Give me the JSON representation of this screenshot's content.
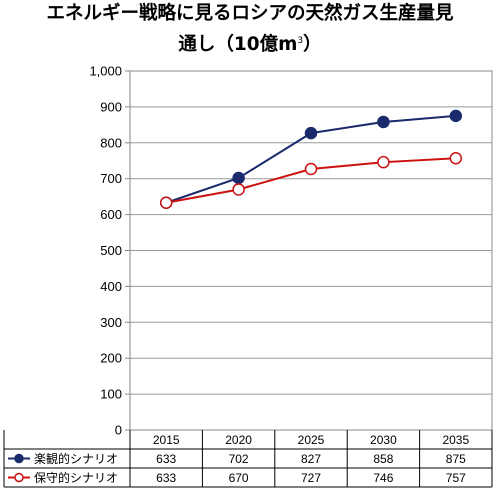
{
  "title": {
    "line1": "エネルギー戦略に見るロシアの天然ガス生産量見",
    "line2_main": "通し（10億m",
    "line2_sup": "3",
    "line2_end": "）"
  },
  "chart_data": {
    "type": "line",
    "categories": [
      "2015",
      "2020",
      "2025",
      "2030",
      "2035"
    ],
    "ylim": [
      0,
      1000
    ],
    "yticks": [
      0,
      100,
      200,
      300,
      400,
      500,
      600,
      700,
      800,
      900,
      1000
    ],
    "ytick_labels": [
      "0",
      "100",
      "200",
      "300",
      "400",
      "500",
      "600",
      "700",
      "800",
      "900",
      "1,000"
    ],
    "grid": true,
    "legend_position": "table-below",
    "series": [
      {
        "name": "楽観的シナリオ",
        "values": [
          633,
          702,
          827,
          858,
          875
        ],
        "color": "#1a2a6c",
        "marker": "filled-circle"
      },
      {
        "name": "保守的シナリオ",
        "values": [
          633,
          670,
          727,
          746,
          757
        ],
        "color": "#cc1111",
        "marker": "open-circle"
      }
    ]
  }
}
